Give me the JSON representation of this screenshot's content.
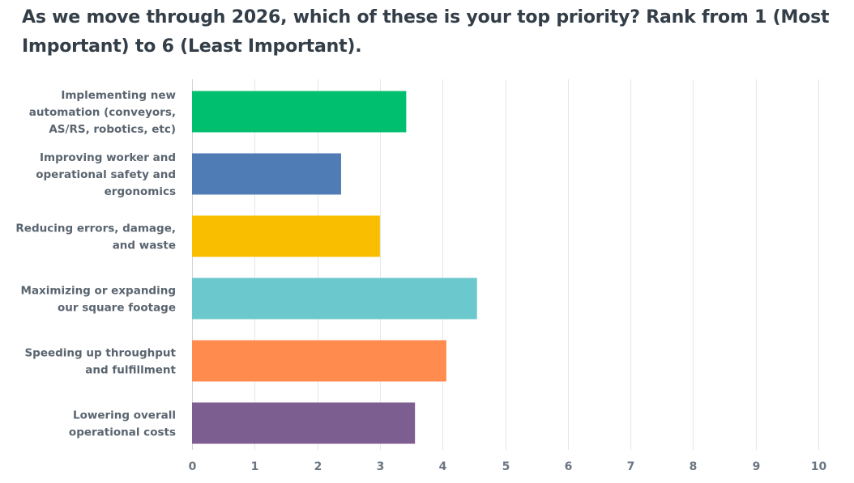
{
  "question": {
    "title": "As we move through 2026, which of these is your top priority? Rank from 1 (Most Important) to 6 (Least Important)."
  },
  "chart_data": {
    "type": "bar",
    "orientation": "horizontal",
    "categories": [
      [
        "Implementing new",
        "automation (conveyors,",
        "AS/RS, robotics, etc)"
      ],
      [
        "Improving worker and",
        "operational safety and",
        "ergonomics"
      ],
      [
        "Reducing errors, damage,",
        "and waste"
      ],
      [
        "Maximizing or expanding",
        "our square footage"
      ],
      [
        "Speeding up throughput",
        "and fulfillment"
      ],
      [
        "Lowering overall",
        "operational costs"
      ]
    ],
    "values": [
      3.42,
      2.38,
      3.0,
      4.55,
      4.06,
      3.56
    ],
    "colors": [
      "#00bf6f",
      "#507cb6",
      "#f9be00",
      "#6bc8cd",
      "#ff8b4f",
      "#7d5e90"
    ],
    "xlim": [
      0,
      10
    ],
    "xticks": [
      "0",
      "1",
      "2",
      "3",
      "4",
      "5",
      "6",
      "7",
      "8",
      "9",
      "10"
    ],
    "grid": true,
    "title": "",
    "xlabel": "",
    "ylabel": ""
  }
}
